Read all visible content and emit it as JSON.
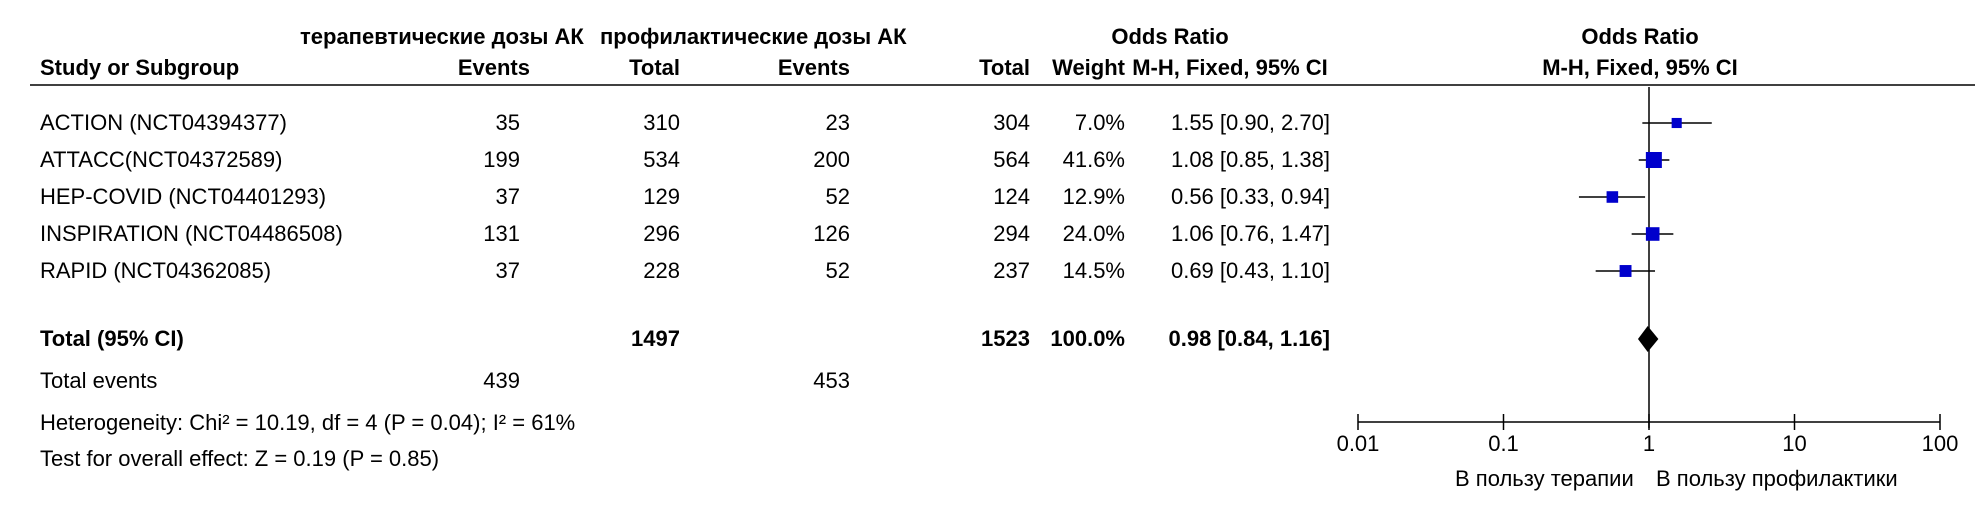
{
  "headers": {
    "group1": "терапевтические дозы АК",
    "group2": "профилактические дозы АК",
    "or_table": "Odds Ratio",
    "or_table_sub": "M-H, Fixed, 95% CI",
    "or_plot": "Odds Ratio",
    "or_plot_sub": "M-H, Fixed, 95% CI",
    "study": "Study or Subgroup",
    "events1": "Events",
    "total1": "Total",
    "events2": "Events",
    "total2": "Total",
    "weight": "Weight"
  },
  "studies": [
    {
      "name": "ACTION (NCT04394377)",
      "e1": "35",
      "n1": "310",
      "e2": "23",
      "n2": "304",
      "weight": "7.0%",
      "ci": "1.55 [0.90, 2.70]"
    },
    {
      "name": "ATTACC(NCT04372589)",
      "e1": "199",
      "n1": "534",
      "e2": "200",
      "n2": "564",
      "weight": "41.6%",
      "ci": "1.08 [0.85, 1.38]"
    },
    {
      "name": "HEP-COVID (NCT04401293)",
      "e1": "37",
      "n1": "129",
      "e2": "52",
      "n2": "124",
      "weight": "12.9%",
      "ci": "0.56 [0.33, 0.94]"
    },
    {
      "name": "INSPIRATION (NCT04486508)",
      "e1": "131",
      "n1": "296",
      "e2": "126",
      "n2": "294",
      "weight": "24.0%",
      "ci": "1.06 [0.76, 1.47]"
    },
    {
      "name": "RAPID (NCT04362085)",
      "e1": "37",
      "n1": "228",
      "e2": "52",
      "n2": "237",
      "weight": "14.5%",
      "ci": "0.69 [0.43, 1.10]"
    }
  ],
  "total": {
    "label": "Total (95% CI)",
    "n1": "1497",
    "n2": "1523",
    "weight": "100.0%",
    "ci": "0.98 [0.84, 1.16]"
  },
  "total_events": {
    "label": "Total events",
    "e1": "439",
    "e2": "453"
  },
  "heterogeneity": "Heterogeneity: Chi² = 10.19, df = 4 (P = 0.04); I² = 61%",
  "overall_effect": "Test for overall effect: Z = 0.19 (P = 0.85)",
  "axis_labels": {
    "left": "В пользу терапии",
    "right": "В пользу профилактики"
  },
  "chart_data": {
    "type": "scatter",
    "xscale": "log",
    "xlim": [
      0.01,
      100
    ],
    "xticks": [
      "0.01",
      "0.1",
      "1",
      "10",
      "100"
    ],
    "xtick_values": [
      0.01,
      0.1,
      1,
      10,
      100
    ],
    "reference_line": 1,
    "points": [
      {
        "or": 1.55,
        "lo": 0.9,
        "hi": 2.7,
        "weight": 7.0
      },
      {
        "or": 1.08,
        "lo": 0.85,
        "hi": 1.38,
        "weight": 41.6
      },
      {
        "or": 0.56,
        "lo": 0.33,
        "hi": 0.94,
        "weight": 12.9
      },
      {
        "or": 1.06,
        "lo": 0.76,
        "hi": 1.47,
        "weight": 24.0
      },
      {
        "or": 0.69,
        "lo": 0.43,
        "hi": 1.1,
        "weight": 14.5
      }
    ],
    "pooled": {
      "or": 0.98,
      "lo": 0.84,
      "hi": 1.16
    },
    "marker_color": "#0000cc",
    "diamond_color": "#000000"
  }
}
